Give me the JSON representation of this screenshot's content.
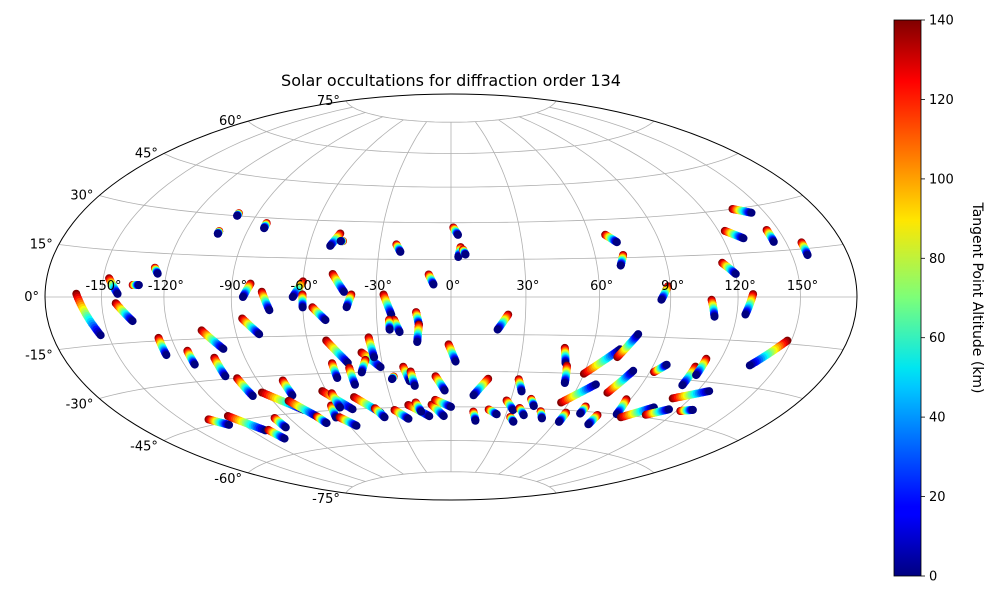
{
  "chart_data": {
    "type": "scatter",
    "projection": "hammer",
    "title": "Solar occultations for diffraction order 134",
    "lon_ticks": [
      "-150°",
      "-120°",
      "-90°",
      "-60°",
      "-30°",
      "0°",
      "30°",
      "60°",
      "90°",
      "120°",
      "150°"
    ],
    "lat_ticks": [
      "-75°",
      "-60°",
      "-45°",
      "-30°",
      "-15°",
      "0°",
      "15°",
      "30°",
      "45°",
      "60°",
      "75°"
    ],
    "grid": true,
    "colorbar": {
      "label": "Tangent Point Altitude (km)",
      "ticks": [
        "0",
        "20",
        "40",
        "60",
        "80",
        "100",
        "120",
        "140"
      ],
      "range": [
        0,
        140
      ],
      "colormap": "jet"
    },
    "tracks": [
      [
        -163,
        1,
        -154,
        -12
      ],
      [
        -143,
        -2,
        -136,
        -8
      ],
      [
        -147,
        6,
        -142,
        1
      ],
      [
        -135,
        4,
        -132,
        4
      ],
      [
        -126,
        10,
        -124,
        8
      ],
      [
        -126,
        -14,
        -126,
        -20
      ],
      [
        -115,
        -19,
        -115,
        -24
      ],
      [
        -103,
        24,
        -103,
        23
      ],
      [
        -99,
        31,
        -99,
        30
      ],
      [
        -83,
        28,
        -83,
        26
      ],
      [
        -105,
        -12,
        -98,
        -19
      ],
      [
        -86,
        -8,
        -80,
        -14
      ],
      [
        -104,
        -22,
        -104,
        -29
      ],
      [
        -99,
        -30,
        -98,
        -37
      ],
      [
        -78,
        -32,
        -78,
        -38
      ],
      [
        -82,
        5,
        -85,
        0
      ],
      [
        -77,
        2,
        -74,
        -5
      ],
      [
        -60,
        6,
        -64,
        0
      ],
      [
        -60,
        1,
        -60,
        -4
      ],
      [
        -48,
        25,
        -51,
        20
      ],
      [
        -46,
        22,
        -47,
        22
      ],
      [
        -48,
        9,
        -43,
        2
      ],
      [
        -40,
        1,
        -42,
        -4
      ],
      [
        -56,
        -4,
        -51,
        -9
      ],
      [
        -52,
        -17,
        -45,
        -26
      ],
      [
        -52,
        -26,
        -52,
        -32
      ],
      [
        -38,
        -22,
        -31,
        -28
      ],
      [
        -34,
        -16,
        -33,
        -24
      ],
      [
        -62,
        -37,
        -52,
        -45
      ],
      [
        -62,
        -43,
        -64,
        -48
      ],
      [
        -45,
        -28,
        -45,
        -35
      ],
      [
        -37,
        -25,
        -40,
        -30
      ],
      [
        -23,
        21,
        -21,
        18
      ],
      [
        -27,
        1,
        -24,
        -7
      ],
      [
        -23,
        -9,
        -21,
        -14
      ],
      [
        -25,
        -9,
        -25,
        -13
      ],
      [
        -14,
        -6,
        -13,
        -11
      ],
      [
        -9,
        9,
        -7,
        5
      ],
      [
        -13,
        -11,
        -14,
        -18
      ],
      [
        -21,
        -28,
        -19,
        -34
      ],
      [
        -18,
        -30,
        -17,
        -36
      ],
      [
        -26,
        -32,
        -27,
        -33
      ],
      [
        -7,
        -32,
        -3,
        -38
      ],
      [
        -1,
        -19,
        2,
        -26
      ],
      [
        1,
        28,
        3,
        25
      ],
      [
        4,
        20,
        3,
        16
      ],
      [
        5,
        19,
        6,
        17
      ],
      [
        23,
        -7,
        19,
        -13
      ],
      [
        17,
        -33,
        11,
        -40
      ],
      [
        31,
        -33,
        34,
        -38
      ],
      [
        33,
        -49,
        36,
        -51
      ],
      [
        48,
        -20,
        50,
        -26
      ],
      [
        51,
        -27,
        53,
        -34
      ],
      [
        56,
        -42,
        68,
        -34
      ],
      [
        60,
        -30,
        72,
        -20
      ],
      [
        72,
        -23,
        78,
        -14
      ],
      [
        67,
        24,
        71,
        21
      ],
      [
        72,
        16,
        70,
        12
      ],
      [
        76,
        -37,
        82,
        -28
      ],
      [
        89,
        4,
        86,
        -1
      ],
      [
        92,
        -28,
        96,
        -25
      ],
      [
        88,
        -39,
        90,
        -45
      ],
      [
        110,
        -25,
        110,
        -32
      ],
      [
        113,
        -22,
        113,
        -28
      ],
      [
        108,
        -1,
        110,
        -7
      ],
      [
        111,
        -37,
        126,
        -33
      ],
      [
        115,
        12,
        120,
        8
      ],
      [
        123,
        23,
        130,
        20
      ],
      [
        127,
        1,
        124,
        -6
      ],
      [
        135,
        30,
        143,
        28
      ],
      [
        148,
        -14,
        136,
        -23
      ],
      [
        144,
        22,
        144,
        18
      ],
      [
        158,
        17,
        158,
        13
      ],
      [
        -135,
        -43,
        -128,
        -46
      ],
      [
        -122,
        -43,
        -112,
        -50
      ],
      [
        -110,
        -50,
        -108,
        -54
      ],
      [
        -98,
        -46,
        -98,
        -50
      ],
      [
        -92,
        -36,
        -78,
        -44
      ],
      [
        -82,
        -40,
        -74,
        -47
      ],
      [
        -74,
        -47,
        -72,
        -50
      ],
      [
        -62,
        -48,
        -56,
        -52
      ],
      [
        -58,
        -38,
        -58,
        -44
      ],
      [
        -48,
        -40,
        -38,
        -47
      ],
      [
        -40,
        -45,
        -37,
        -49
      ],
      [
        -30,
        -46,
        -24,
        -50
      ],
      [
        -22,
        -44,
        -12,
        -49
      ],
      [
        -18,
        -43,
        -16,
        -47
      ],
      [
        -10,
        -44,
        -4,
        -49
      ],
      [
        -8,
        -42,
        0,
        -45
      ],
      [
        12,
        -47,
        14,
        -51
      ],
      [
        20,
        -46,
        25,
        -48
      ],
      [
        28,
        -42,
        33,
        -46
      ],
      [
        36,
        -45,
        40,
        -48
      ],
      [
        40,
        -41,
        43,
        -44
      ],
      [
        48,
        -46,
        51,
        -49
      ],
      [
        62,
        -46,
        62,
        -50
      ],
      [
        70,
        -43,
        70,
        -46
      ],
      [
        80,
        -46,
        80,
        -50
      ],
      [
        94,
        -46,
        106,
        -41
      ],
      [
        106,
        -44,
        115,
        -41
      ],
      [
        122,
        -41,
        128,
        -40
      ]
    ]
  }
}
